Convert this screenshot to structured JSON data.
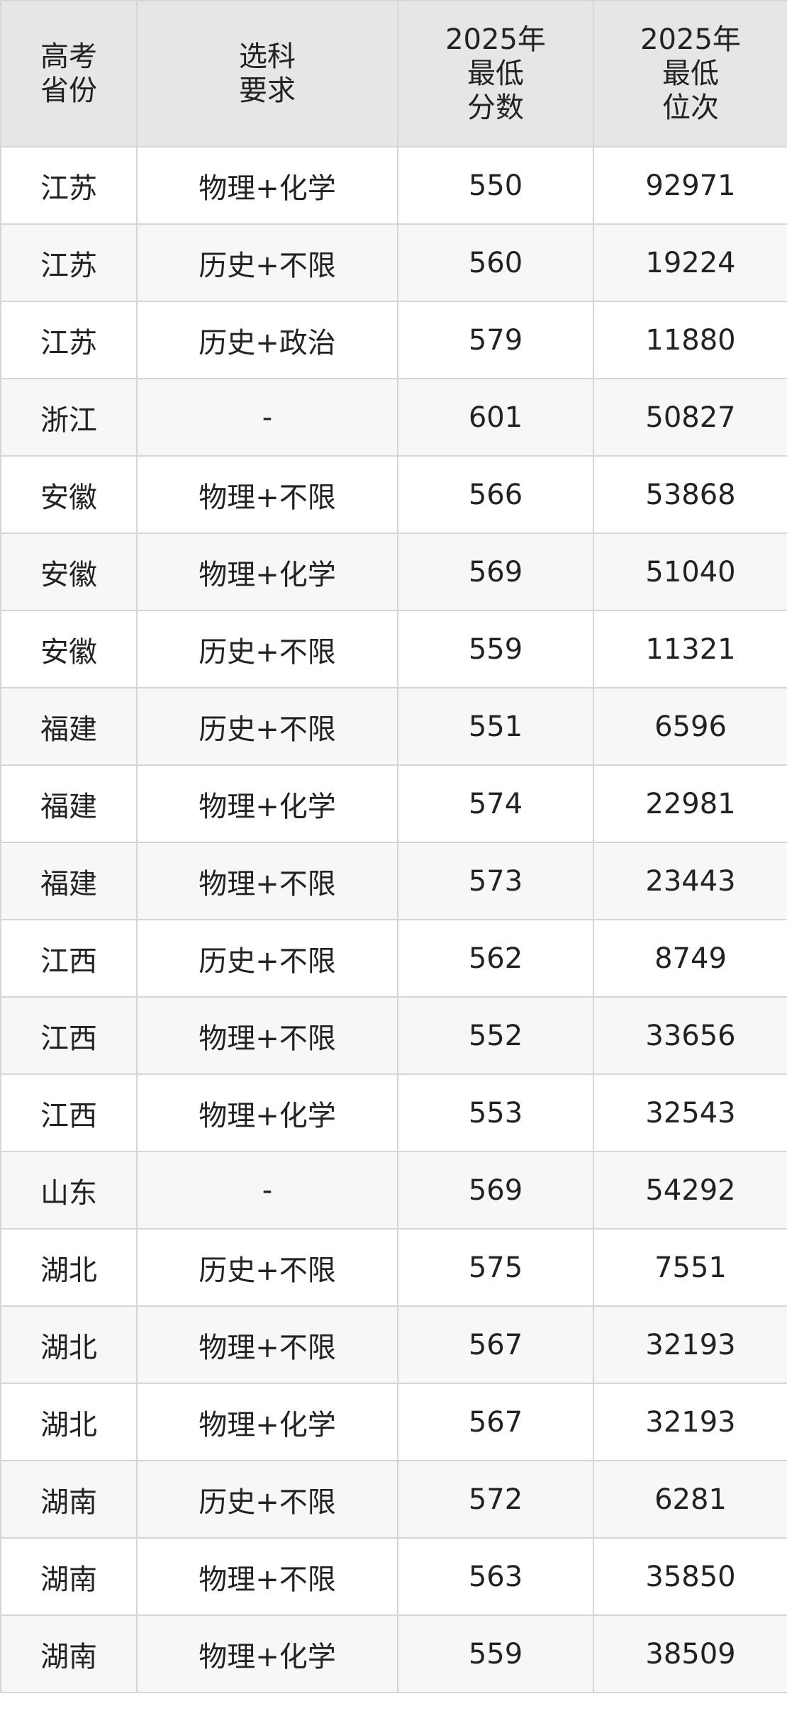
{
  "table": {
    "header": [
      "高考\n省份",
      "选科\n要求",
      "2025年\n最低\n分数",
      "2025年\n最低\n位次"
    ],
    "rows": [
      [
        "江苏",
        "物理+化学",
        550,
        92971
      ],
      [
        "江苏",
        "历史+不限",
        560,
        19224
      ],
      [
        "江苏",
        "历史+政治",
        579,
        11880
      ],
      [
        "浙江",
        "-",
        601,
        50827
      ],
      [
        "安徽",
        "物理+不限",
        566,
        53868
      ],
      [
        "安徽",
        "物理+化学",
        569,
        51040
      ],
      [
        "安徽",
        "历史+不限",
        559,
        11321
      ],
      [
        "福建",
        "历史+不限",
        551,
        6596
      ],
      [
        "福建",
        "物理+化学",
        574,
        22981
      ],
      [
        "福建",
        "物理+不限",
        573,
        23443
      ],
      [
        "江西",
        "历史+不限",
        562,
        8749
      ],
      [
        "江西",
        "物理+不限",
        552,
        33656
      ],
      [
        "江西",
        "物理+化学",
        553,
        32543
      ],
      [
        "山东",
        "-",
        569,
        54292
      ],
      [
        "湖北",
        "历史+不限",
        575,
        7551
      ],
      [
        "湖北",
        "物理+不限",
        567,
        32193
      ],
      [
        "湖北",
        "物理+化学",
        567,
        32193
      ],
      [
        "湖南",
        "历史+不限",
        572,
        6281
      ],
      [
        "湖南",
        "物理+不限",
        563,
        35850
      ],
      [
        "湖南",
        "物理+化学",
        559,
        38509
      ]
    ]
  }
}
